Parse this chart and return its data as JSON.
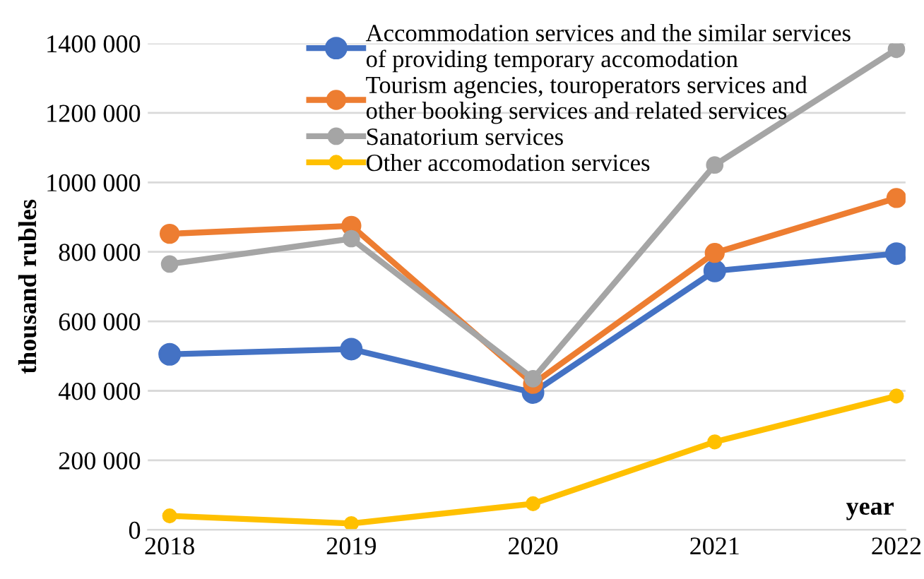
{
  "chart_data": {
    "type": "line",
    "ylabel": "thousand rubles",
    "xlabel": "year",
    "categories": [
      "2018",
      "2019",
      "2020",
      "2021",
      "2022"
    ],
    "series": [
      {
        "name": "Accommodation services and the similar services\nof providing temporary accomodation",
        "color": "#4472c4",
        "values": [
          505000,
          520000,
          395000,
          745000,
          795000
        ]
      },
      {
        "name": "Tourism agencies, touroperators services and\nother booking services and related services",
        "color": "#ed7d31",
        "values": [
          852000,
          875000,
          420000,
          797000,
          955000
        ]
      },
      {
        "name": "Sanatorium services",
        "color": "#a5a5a5",
        "values": [
          765000,
          838000,
          435000,
          1050000,
          1383000
        ]
      },
      {
        "name": "Other accomodation services",
        "color": "#ffc000",
        "values": [
          40000,
          18000,
          75000,
          253000,
          385000
        ]
      }
    ],
    "ylim": [
      0,
      1400000
    ],
    "yticks": [
      {
        "value": 0,
        "label": "0"
      },
      {
        "value": 200000,
        "label": "200 000"
      },
      {
        "value": 400000,
        "label": "400 000"
      },
      {
        "value": 600000,
        "label": "600 000"
      },
      {
        "value": 800000,
        "label": "800 000"
      },
      {
        "value": 1000000,
        "label": "1000 000"
      },
      {
        "value": 1200000,
        "label": "1200 000"
      },
      {
        "value": 1400000,
        "label": "1400 000"
      }
    ],
    "grid": "y",
    "legend": "top",
    "marker": "circle",
    "line_style": "solid"
  }
}
